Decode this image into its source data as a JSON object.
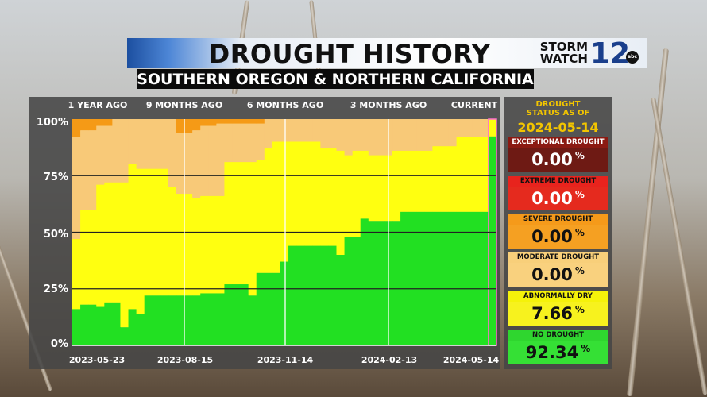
{
  "header": {
    "title": "DROUGHT HISTORY",
    "subtitle": "SOUTHERN OREGON & NORTHERN CALIFORNIA"
  },
  "logo": {
    "line1": "STORM",
    "line2": "WATCH",
    "number": "12",
    "badge": "abc"
  },
  "status": {
    "heading_line1": "DROUGHT",
    "heading_line2": "STATUS AS OF",
    "date": "2024-05-14",
    "categories": [
      {
        "label": "EXCEPTIONAL DROUGHT",
        "value": "0.00",
        "unit": "%",
        "label_bg": "#8b1a12",
        "value_bg": "#6e1a14",
        "label_color": "#ffffff",
        "value_color": "#ffffff"
      },
      {
        "label": "EXTREME DROUGHT",
        "value": "0.00",
        "unit": "%",
        "label_bg": "#e8231d",
        "value_bg": "#e52a1e",
        "label_color": "#111111",
        "value_color": "#ffffff"
      },
      {
        "label": "SEVERE DROUGHT",
        "value": "0.00",
        "unit": "%",
        "label_bg": "#f59a1a",
        "value_bg": "#f5a022",
        "label_color": "#111111",
        "value_color": "#111111"
      },
      {
        "label": "MODERATE DROUGHT",
        "value": "0.00",
        "unit": "%",
        "label_bg": "#f8cf7a",
        "value_bg": "#f9d17e",
        "label_color": "#111111",
        "value_color": "#111111"
      },
      {
        "label": "ABNORMALLY DRY",
        "value": "7.66",
        "unit": "%",
        "label_bg": "#f5f20a",
        "value_bg": "#f7f21e",
        "label_color": "#111111",
        "value_color": "#111111"
      },
      {
        "label": "NO DROUGHT",
        "value": "92.34",
        "unit": "%",
        "label_bg": "#2fd62f",
        "value_bg": "#35e035",
        "label_color": "#111111",
        "value_color": "#111111"
      }
    ]
  },
  "chart_data": {
    "type": "area",
    "stacked": true,
    "ylim": [
      0,
      100
    ],
    "yticks": [
      "0%",
      "25%",
      "50%",
      "75%",
      "100%"
    ],
    "top_labels": [
      "1 YEAR AGO",
      "9 MONTHS AGO",
      "6 MONTHS AGO",
      "3 MONTHS AGO",
      "CURRENT"
    ],
    "x_labels": [
      "2023-05-23",
      "2023-08-15",
      "2023-11-14",
      "2024-02-13",
      "2024-05-14"
    ],
    "grid": true,
    "series_colors": {
      "no_drought": "#22e022",
      "abnormally_dry": "#ffff10",
      "moderate": "#f8c978",
      "severe": "#f59a16"
    },
    "weeks": 53,
    "no_drought": [
      16,
      18,
      18,
      17,
      19,
      19,
      8,
      16,
      14,
      22,
      22,
      22,
      22,
      22,
      22,
      22,
      23,
      23,
      23,
      27,
      27,
      27,
      22,
      32,
      32,
      32,
      37,
      44,
      44,
      44,
      44,
      44,
      44,
      40,
      48,
      48,
      56,
      55,
      55,
      55,
      55,
      59,
      59,
      59,
      59,
      59,
      59,
      59,
      59,
      59,
      59,
      59,
      92.34
    ],
    "cum_dry": [
      47,
      60,
      60,
      71,
      72,
      72,
      72,
      80,
      78,
      78,
      78,
      78,
      70,
      67,
      67,
      65,
      66,
      66,
      66,
      81,
      81,
      81,
      81,
      82,
      87,
      90,
      90,
      90,
      90,
      90,
      90,
      87,
      87,
      86,
      84,
      86,
      86,
      84,
      84,
      84,
      86,
      86,
      86,
      86,
      86,
      88,
      88,
      88,
      92,
      92,
      92,
      92,
      100
    ],
    "cum_moderate": [
      92,
      95,
      95,
      97,
      97,
      100,
      100,
      100,
      100,
      100,
      100,
      100,
      100,
      100,
      100,
      100,
      100,
      100,
      100,
      100,
      100,
      100,
      100,
      100,
      100,
      100,
      100,
      100,
      100,
      100,
      100,
      100,
      100,
      100,
      100,
      100,
      100,
      100,
      100,
      100,
      100,
      100,
      100,
      100,
      100,
      100,
      100,
      100,
      100,
      100,
      100,
      100,
      100
    ],
    "severe_top": [
      100,
      100,
      100,
      100,
      100,
      100,
      100,
      100,
      100,
      100,
      100,
      100,
      100,
      100,
      100,
      100,
      100,
      100,
      100,
      100,
      100,
      100,
      100,
      100,
      100,
      100,
      100,
      100,
      100,
      100,
      100,
      100,
      100,
      100,
      100,
      100,
      100,
      100,
      100,
      100,
      100,
      100,
      100,
      100,
      100,
      100,
      100,
      100,
      100,
      100,
      100,
      100,
      100
    ],
    "severe_extra": [
      0,
      0,
      0,
      0,
      0,
      0,
      0,
      0,
      0,
      0,
      0,
      0,
      0,
      0,
      0,
      0,
      0,
      0,
      0,
      0,
      0,
      0,
      0,
      0,
      0,
      0,
      0,
      0,
      0,
      0,
      0,
      0,
      0,
      0,
      0,
      0,
      0,
      0,
      0,
      0,
      0,
      0,
      0,
      0,
      0,
      0,
      0,
      0,
      0,
      0,
      0,
      0,
      0
    ],
    "moderate_bottom_override": [
      92,
      95,
      95,
      97,
      97,
      100,
      100,
      100,
      100,
      100,
      100,
      100,
      100,
      94,
      94,
      95,
      97,
      97,
      98,
      98,
      98,
      98,
      98,
      98,
      100,
      100,
      100,
      100,
      100,
      100,
      100,
      100,
      100,
      100,
      100,
      100,
      100,
      100,
      100,
      100,
      100,
      100,
      100,
      100,
      100,
      100,
      100,
      100,
      100,
      100,
      100,
      100,
      100
    ]
  }
}
